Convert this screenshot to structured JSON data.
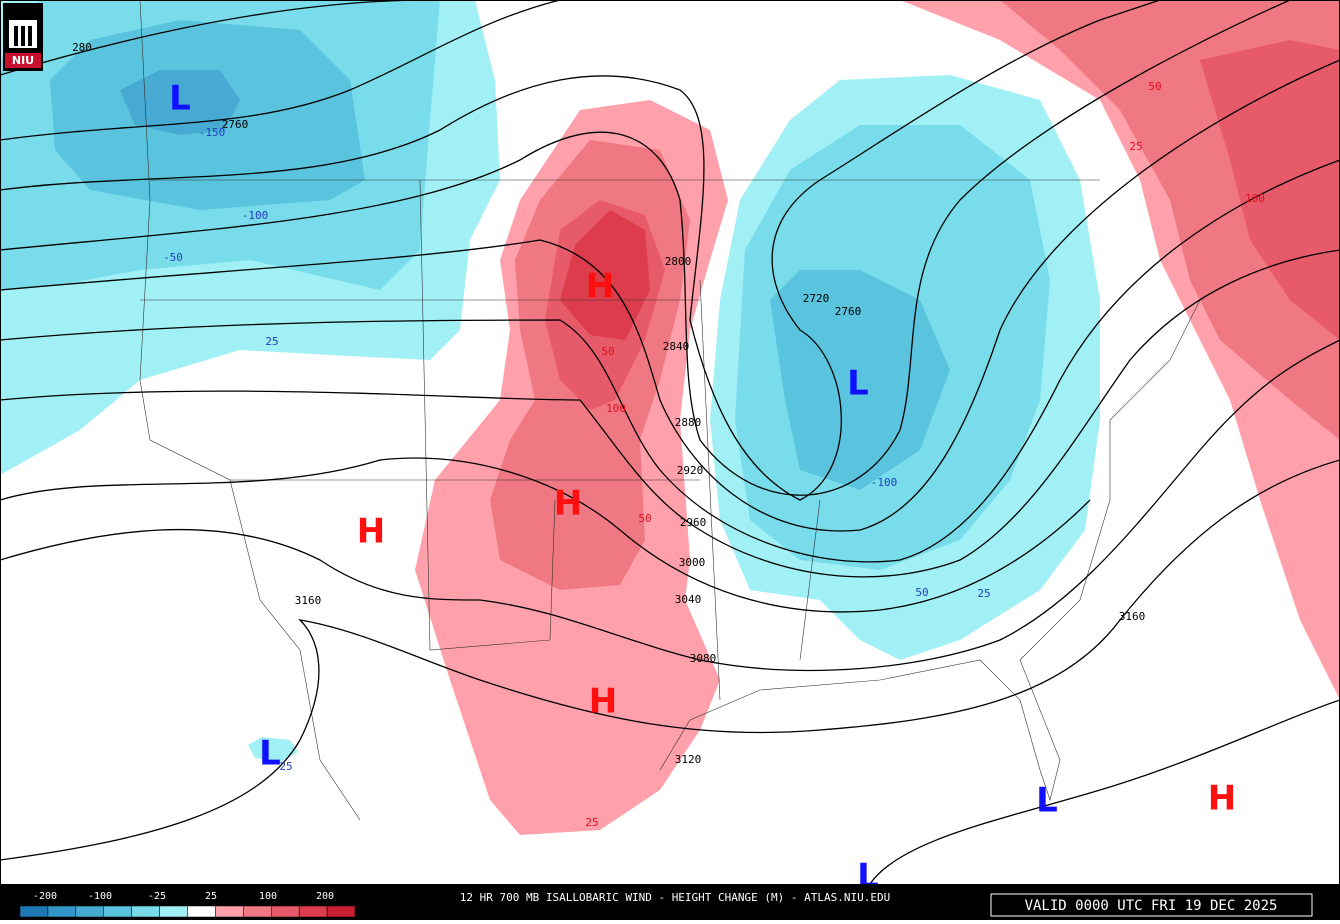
{
  "header": {
    "logo": "NIU"
  },
  "map": {
    "height_labels": [
      "280",
      "2760",
      "2800",
      "2720",
      "2760",
      "2840",
      "2880",
      "2920",
      "2960",
      "3000",
      "3040",
      "3080",
      "3120",
      "3160",
      "3160"
    ],
    "change_labels": [
      "-150",
      "-100",
      "-50",
      "25",
      "50",
      "100",
      "50",
      "25",
      "-100",
      "50",
      "25",
      "50",
      "25",
      "100",
      "25"
    ],
    "markers": [
      "L",
      "H",
      "L",
      "H",
      "H",
      "H",
      "L",
      "L",
      "H",
      "L"
    ]
  },
  "footer": {
    "title": "12 HR 700 MB ISALLOBARIC WIND - HEIGHT CHANGE (M) - ATLAS.NIU.EDU",
    "valid": "VALID 0000 UTC FRI 19 DEC 2025",
    "legend": {
      "labels": [
        "-200",
        "-100",
        "-25",
        "25",
        "100",
        "200"
      ],
      "colors": [
        "#1e78b4",
        "#3296c8",
        "#46aad2",
        "#5ac3de",
        "#78dcea",
        "#a0f0f5",
        "#ffffff",
        "#ffa0aa",
        "#f07882",
        "#e65a69",
        "#dc3c4b",
        "#c81e32"
      ]
    }
  }
}
